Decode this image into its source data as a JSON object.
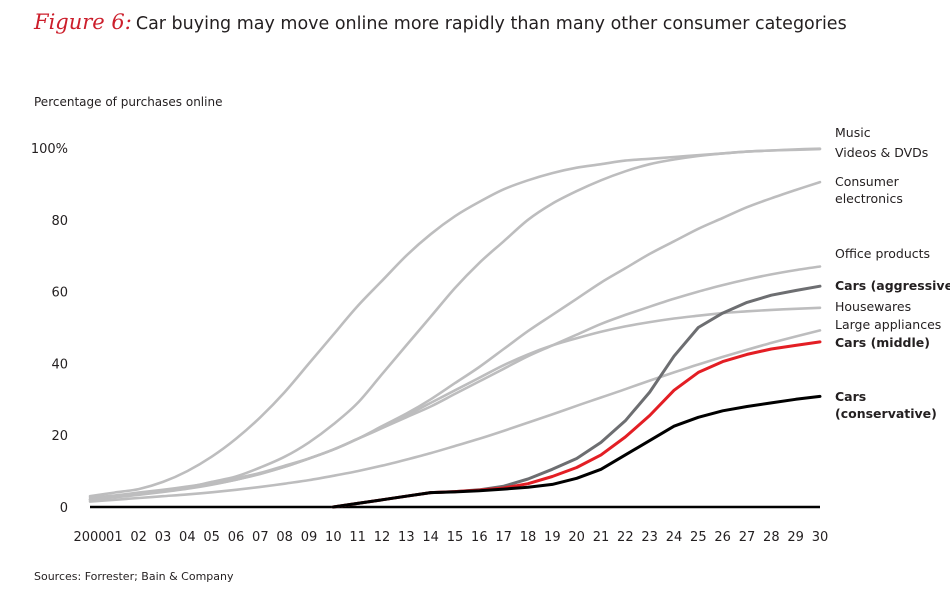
{
  "figure_label": "Figure 6:",
  "title": "Car buying may move online more rapidly than many other consumer categories",
  "source": "Sources: Forrester; Bain & Company",
  "chart_data": {
    "type": "line",
    "ylabel": "Percentage of purchases online",
    "xlabel": "",
    "ylim": [
      0,
      100
    ],
    "yticks": [
      0,
      20,
      40,
      60,
      80,
      100
    ],
    "ytick_labels": [
      "0",
      "20",
      "40",
      "60",
      "80",
      "100%"
    ],
    "xtick_labels": [
      "2000",
      "01",
      "02",
      "03",
      "04",
      "05",
      "06",
      "07",
      "08",
      "09",
      "10",
      "11",
      "12",
      "13",
      "14",
      "15",
      "16",
      "17",
      "18",
      "19",
      "20",
      "21",
      "22",
      "23",
      "24",
      "25",
      "26",
      "27",
      "28",
      "29",
      "30"
    ],
    "x": [
      2000,
      2001,
      2002,
      2003,
      2004,
      2005,
      2006,
      2007,
      2008,
      2009,
      2010,
      2011,
      2012,
      2013,
      2014,
      2015,
      2016,
      2017,
      2018,
      2019,
      2020,
      2021,
      2022,
      2023,
      2024,
      2025,
      2026,
      2027,
      2028,
      2029,
      2030
    ],
    "grid": false,
    "legend_placement": "right end of lines",
    "colors": {
      "background": "#bdbdbe",
      "aggressive": "#6d6e71",
      "middle": "#e31e24",
      "conservative": "#000000",
      "figure_label": "#cc1e2b"
    },
    "series": [
      {
        "name": "Music",
        "label_lines": [
          "Music"
        ],
        "bold": false,
        "color": "#bdbdbe",
        "values": [
          3,
          4,
          5,
          7,
          10,
          14,
          19,
          25,
          32,
          40,
          48,
          56,
          63,
          70,
          76,
          81,
          85,
          88.5,
          91,
          93,
          94.5,
          95.5,
          96.5,
          97,
          97.5,
          98,
          98.5,
          99,
          99.3,
          99.6,
          99.8
        ]
      },
      {
        "name": "Videos & DVDs",
        "label_lines": [
          "Videos & DVDs"
        ],
        "bold": false,
        "color": "#bdbdbe",
        "values": [
          2,
          3,
          3.5,
          4.5,
          5.5,
          7,
          8.5,
          11,
          14,
          18,
          23,
          29,
          37,
          45,
          53,
          61,
          68,
          74,
          80,
          84.5,
          88,
          91,
          93.5,
          95.5,
          96.8,
          97.8,
          98.5,
          99,
          99.3,
          99.5,
          99.7
        ]
      },
      {
        "name": "Consumer electronics",
        "label_lines": [
          "Consumer",
          "electronics"
        ],
        "bold": false,
        "color": "#bdbdbe",
        "values": [
          2,
          2.8,
          3.5,
          4.3,
          5.2,
          6.3,
          7.6,
          9.3,
          11.2,
          13.5,
          16,
          19,
          22.5,
          26,
          30,
          34.5,
          39,
          44,
          49,
          53.5,
          58,
          62.5,
          66.5,
          70.5,
          74,
          77.5,
          80.5,
          83.5,
          86,
          88.3,
          90.5
        ]
      },
      {
        "name": "Office products",
        "label_lines": [
          "Office products"
        ],
        "bold": false,
        "color": "#bdbdbe",
        "values": [
          2.5,
          3.2,
          4,
          4.8,
          5.7,
          6.7,
          8,
          9.5,
          11.5,
          13.5,
          16,
          19,
          22,
          25,
          28,
          31.5,
          35,
          38.5,
          42,
          45,
          48,
          51,
          53.5,
          55.8,
          58,
          60,
          61.8,
          63.4,
          64.8,
          66,
          67
        ]
      },
      {
        "name": "Cars (aggressive)",
        "label_lines": [
          "Cars (aggressive)"
        ],
        "bold": true,
        "color": "#6d6e71",
        "values": [
          0,
          0,
          0,
          0,
          0,
          0,
          0,
          0,
          0,
          0,
          0,
          1,
          2,
          3,
          4,
          4.3,
          4.8,
          5.8,
          7.8,
          10.5,
          13.5,
          18,
          24,
          32,
          42,
          50,
          54,
          57,
          59,
          60.3,
          61.5
        ]
      },
      {
        "name": "Housewares",
        "label_lines": [
          "Housewares"
        ],
        "bold": false,
        "color": "#bdbdbe",
        "values": [
          2,
          2.7,
          3.4,
          4.2,
          5.1,
          6.2,
          7.6,
          9.2,
          11.2,
          13.5,
          16,
          19,
          22,
          25.5,
          29,
          32.5,
          36,
          39.5,
          42.5,
          45,
          47,
          48.8,
          50.3,
          51.5,
          52.5,
          53.3,
          54,
          54.5,
          54.9,
          55.2,
          55.5
        ]
      },
      {
        "name": "Large appliances",
        "label_lines": [
          "Large appliances"
        ],
        "bold": false,
        "color": "#bdbdbe",
        "values": [
          1.5,
          2,
          2.5,
          3,
          3.5,
          4.1,
          4.8,
          5.6,
          6.5,
          7.5,
          8.7,
          10,
          11.5,
          13.2,
          15,
          17,
          19,
          21.2,
          23.5,
          25.8,
          28.2,
          30.5,
          32.8,
          35.2,
          37.5,
          39.7,
          41.8,
          43.8,
          45.7,
          47.5,
          49.2
        ]
      },
      {
        "name": "Cars (middle)",
        "label_lines": [
          "Cars (middle)"
        ],
        "bold": true,
        "color": "#e31e24",
        "values": [
          0,
          0,
          0,
          0,
          0,
          0,
          0,
          0,
          0,
          0,
          0,
          1,
          2,
          3,
          4,
          4.3,
          4.7,
          5.3,
          6.5,
          8.5,
          11,
          14.5,
          19.5,
          25.5,
          32.5,
          37.5,
          40.5,
          42.5,
          44,
          45,
          46
        ]
      },
      {
        "name": "Cars (conservative)",
        "label_lines": [
          "Cars",
          "(conservative)"
        ],
        "bold": true,
        "color": "#000000",
        "values": [
          0,
          0,
          0,
          0,
          0,
          0,
          0,
          0,
          0,
          0,
          0,
          1,
          2,
          3,
          4,
          4.2,
          4.5,
          5,
          5.5,
          6.3,
          8,
          10.5,
          14.5,
          18.5,
          22.5,
          25,
          26.8,
          28,
          29,
          30,
          30.8
        ]
      }
    ]
  }
}
